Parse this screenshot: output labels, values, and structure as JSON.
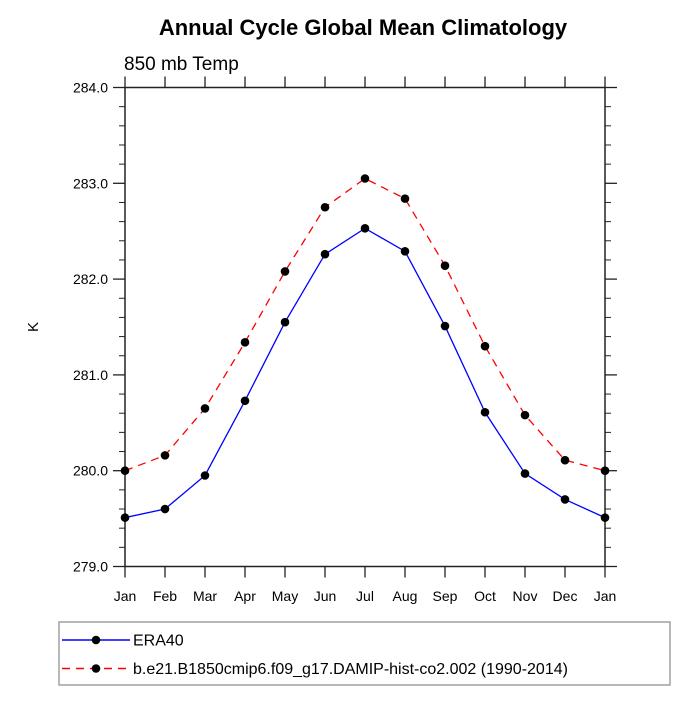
{
  "figure": {
    "title": "Annual Cycle Global Mean Climatology",
    "subtitle": "850 mb Temp"
  },
  "chart_data": {
    "type": "line",
    "title": "Annual Cycle Global Mean Climatology",
    "subtitle": "850 mb Temp",
    "xlabel": "",
    "ylabel": "K",
    "categories": [
      "Jan",
      "Feb",
      "Mar",
      "Apr",
      "May",
      "Jun",
      "Jul",
      "Aug",
      "Sep",
      "Oct",
      "Nov",
      "Dec",
      "Jan"
    ],
    "ylim": [
      279.0,
      284.0
    ],
    "ytick_major_interval": 1.0,
    "ytick_minor_interval": 0.2,
    "ytick_labels": [
      "279.0",
      "280.0",
      "281.0",
      "282.0",
      "283.0",
      "284.0"
    ],
    "grid": false,
    "legend_position": "bottom-left",
    "axis_color": "#222222",
    "marker": "filled-circle",
    "marker_color": "#000000",
    "series": [
      {
        "name": "ERA40",
        "color": "#0000ff",
        "line_style": "solid",
        "values": [
          279.51,
          279.6,
          279.95,
          280.73,
          281.55,
          282.26,
          282.53,
          282.29,
          281.51,
          280.61,
          279.97,
          279.7,
          279.51
        ]
      },
      {
        "name": "b.e21.B1850cmip6.f09_g17.DAMIP-hist-co2.002 (1990-2014)",
        "color": "#ff0000",
        "line_style": "dashed",
        "values": [
          280.0,
          280.16,
          280.65,
          281.34,
          282.08,
          282.75,
          283.05,
          282.84,
          282.14,
          281.3,
          280.58,
          280.11,
          280.0
        ]
      }
    ]
  }
}
